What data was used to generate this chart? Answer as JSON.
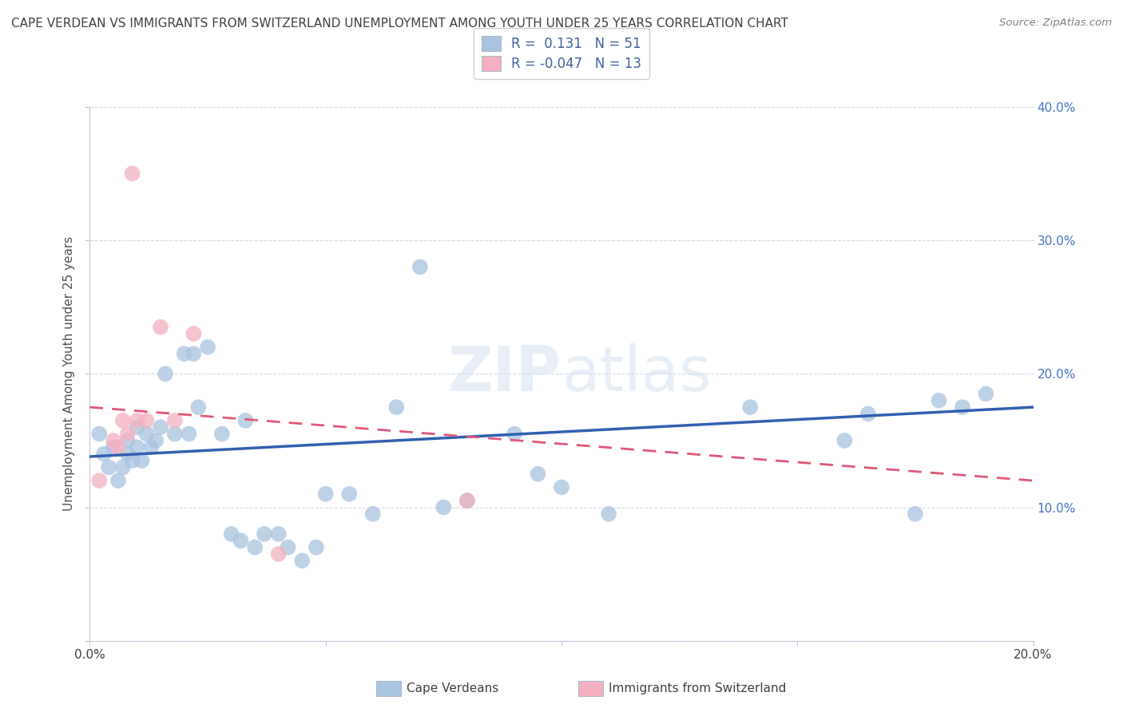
{
  "title": "CAPE VERDEAN VS IMMIGRANTS FROM SWITZERLAND UNEMPLOYMENT AMONG YOUTH UNDER 25 YEARS CORRELATION CHART",
  "source": "Source: ZipAtlas.com",
  "ylabel": "Unemployment Among Youth under 25 years",
  "watermark": "ZIPatlas",
  "legend_blue_r": "0.131",
  "legend_blue_n": "51",
  "legend_pink_r": "-0.047",
  "legend_pink_n": "13",
  "xlim": [
    0.0,
    0.2
  ],
  "ylim": [
    0.0,
    0.4
  ],
  "xticks": [
    0.0,
    0.05,
    0.1,
    0.15,
    0.2
  ],
  "yticks": [
    0.0,
    0.1,
    0.2,
    0.3,
    0.4
  ],
  "xticklabels": [
    "0.0%",
    "",
    "",
    "",
    "20.0%"
  ],
  "yticklabels_right": [
    "",
    "10.0%",
    "20.0%",
    "30.0%",
    "40.0%"
  ],
  "blue_color": "#a8c4e0",
  "pink_color": "#f4b0c0",
  "blue_line_color": "#3060b0",
  "pink_line_color": "#e05878",
  "title_color": "#404040",
  "source_color": "#808080",
  "legend_color": "#4060a0",
  "grid_color": "#d0d8e8",
  "blue_scatter_x": [
    0.002,
    0.003,
    0.004,
    0.005,
    0.006,
    0.007,
    0.008,
    0.008,
    0.009,
    0.01,
    0.01,
    0.011,
    0.012,
    0.013,
    0.014,
    0.015,
    0.016,
    0.018,
    0.02,
    0.021,
    0.022,
    0.023,
    0.025,
    0.028,
    0.03,
    0.032,
    0.033,
    0.035,
    0.037,
    0.04,
    0.042,
    0.045,
    0.048,
    0.05,
    0.055,
    0.06,
    0.065,
    0.07,
    0.075,
    0.08,
    0.09,
    0.095,
    0.1,
    0.11,
    0.14,
    0.16,
    0.165,
    0.175,
    0.18,
    0.185,
    0.19
  ],
  "blue_scatter_y": [
    0.155,
    0.14,
    0.13,
    0.145,
    0.12,
    0.13,
    0.15,
    0.14,
    0.135,
    0.145,
    0.16,
    0.135,
    0.155,
    0.145,
    0.15,
    0.16,
    0.2,
    0.155,
    0.215,
    0.155,
    0.215,
    0.175,
    0.22,
    0.155,
    0.08,
    0.075,
    0.165,
    0.07,
    0.08,
    0.08,
    0.07,
    0.06,
    0.07,
    0.11,
    0.11,
    0.095,
    0.175,
    0.28,
    0.1,
    0.105,
    0.155,
    0.125,
    0.115,
    0.095,
    0.175,
    0.15,
    0.17,
    0.095,
    0.18,
    0.175,
    0.185
  ],
  "pink_scatter_x": [
    0.002,
    0.005,
    0.006,
    0.007,
    0.008,
    0.009,
    0.01,
    0.012,
    0.015,
    0.018,
    0.022,
    0.04,
    0.08
  ],
  "pink_scatter_y": [
    0.12,
    0.15,
    0.145,
    0.165,
    0.155,
    0.35,
    0.165,
    0.165,
    0.235,
    0.165,
    0.23,
    0.065,
    0.105
  ],
  "blue_trend_x": [
    0.0,
    0.2
  ],
  "blue_trend_y": [
    0.138,
    0.175
  ],
  "pink_trend_x": [
    0.0,
    0.2
  ],
  "pink_trend_y": [
    0.175,
    0.12
  ],
  "bottom_legend_items": [
    {
      "label": "Cape Verdeans",
      "color": "#a8c4e0"
    },
    {
      "label": "Immigrants from Switzerland",
      "color": "#f4b0c0"
    }
  ]
}
